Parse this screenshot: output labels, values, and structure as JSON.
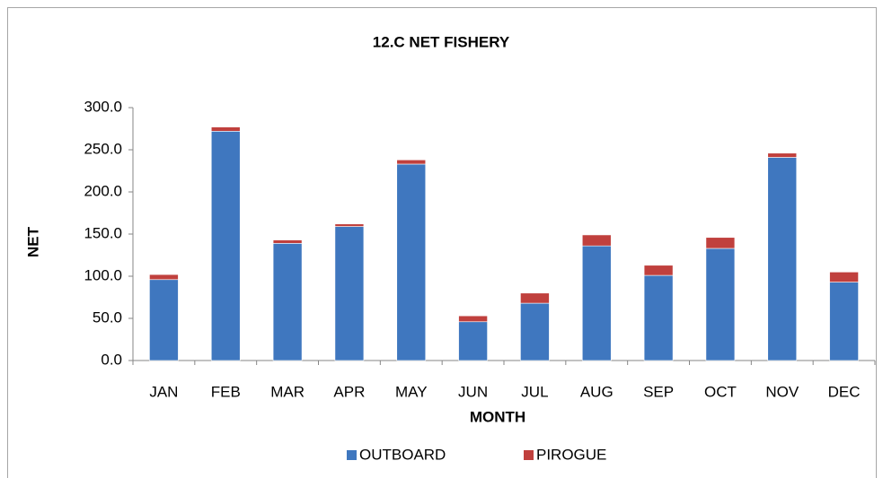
{
  "chart_data": {
    "type": "stacked_bar",
    "title": "12.C NET FISHERY",
    "x_label": "MONTH",
    "y_label": "NET",
    "categories": [
      "JAN",
      "FEB",
      "MAR",
      "APR",
      "MAY",
      "JUN",
      "JUL",
      "AUG",
      "SEP",
      "OCT",
      "NOV",
      "DEC"
    ],
    "series": [
      {
        "name": "OUTBOARD",
        "color": "#3f77bf",
        "values": [
          96,
          272,
          139,
          159,
          233,
          46,
          68,
          136,
          101,
          133,
          241,
          93
        ]
      },
      {
        "name": "PIROGUE",
        "color": "#c0403d",
        "values": [
          6,
          5,
          4,
          3,
          5,
          7,
          12,
          13,
          12,
          13,
          5,
          12
        ]
      }
    ],
    "ylim": [
      0,
      300
    ],
    "yticks": [
      {
        "value": 0,
        "label": "0.0"
      },
      {
        "value": 50,
        "label": "50.0"
      },
      {
        "value": 100,
        "label": "100.0"
      },
      {
        "value": 150,
        "label": "150.0"
      },
      {
        "value": 200,
        "label": "200.0"
      },
      {
        "value": 250,
        "label": "250.0"
      },
      {
        "value": 300,
        "label": "300.0"
      }
    ],
    "legend": "bottom"
  }
}
